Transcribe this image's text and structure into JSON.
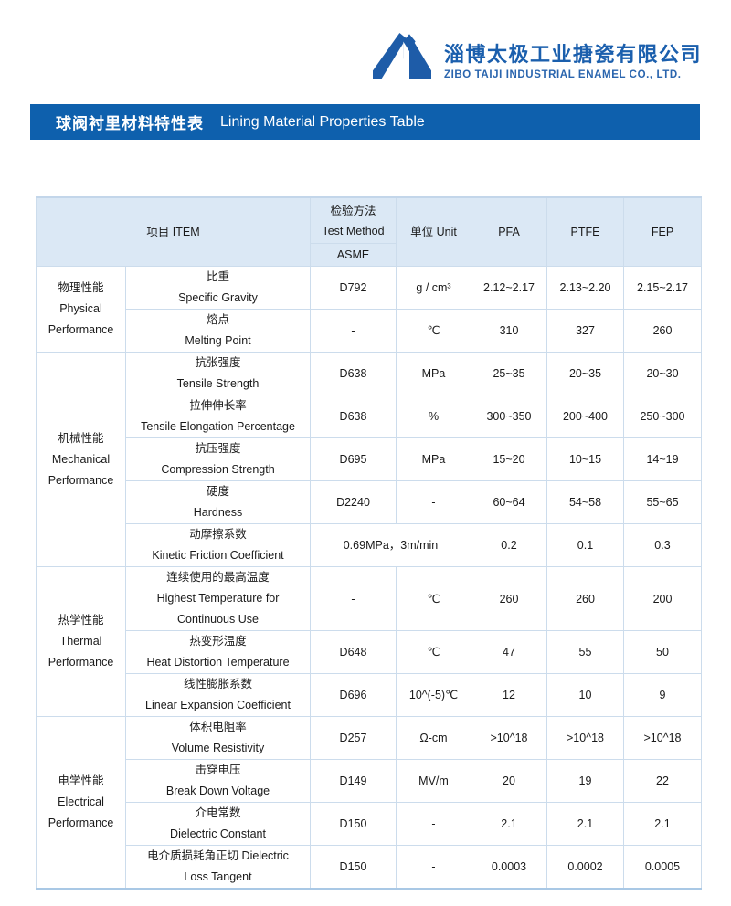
{
  "company": {
    "name_zh": "淄博太极工业搪瓷有限公司",
    "name_en": "ZIBO TAIJI INDUSTRIAL ENAMEL CO., LTD."
  },
  "title": {
    "zh": "球阀衬里材料特性表",
    "en": "Lining Material Properties Table"
  },
  "colors": {
    "brand_blue": "#0e60ad",
    "logo_blue": "#1e5ca8",
    "header_bg": "#dbe8f5",
    "table_border": "#ccdcec",
    "table_bottom_line": "#a9c8e5"
  },
  "table": {
    "header": {
      "item": "项目 ITEM",
      "method_zh": "检验方法",
      "method_en": "Test Method",
      "method_std": "ASME",
      "unit": "单位  Unit",
      "materials": [
        "PFA",
        "PTFE",
        "FEP"
      ]
    },
    "sections": [
      {
        "category_lines": [
          "物理性能",
          "Physical",
          "Performance"
        ],
        "rows": [
          {
            "label_lines": [
              "比重",
              "Specific Gravity"
            ],
            "method": "D792",
            "unit": "g / cm³",
            "values": [
              "2.12~2.17",
              "2.13~2.20",
              "2.15~2.17"
            ]
          },
          {
            "label_lines": [
              "熔点",
              "Melting Point"
            ],
            "method": "-",
            "unit": "℃",
            "values": [
              "310",
              "327",
              "260"
            ]
          }
        ]
      },
      {
        "category_lines": [
          "机械性能",
          "Mechanical",
          "Performance"
        ],
        "rows": [
          {
            "label_lines": [
              "抗张强度",
              "Tensile Strength"
            ],
            "method": "D638",
            "unit": "MPa",
            "values": [
              "25~35",
              "20~35",
              "20~30"
            ]
          },
          {
            "label_lines": [
              "拉伸伸长率",
              "Tensile Elongation Percentage"
            ],
            "method": "D638",
            "unit": "%",
            "values": [
              "300~350",
              "200~400",
              "250~300"
            ]
          },
          {
            "label_lines": [
              "抗压强度",
              "Compression Strength"
            ],
            "method": "D695",
            "unit": "MPa",
            "values": [
              "15~20",
              "10~15",
              "14~19"
            ]
          },
          {
            "label_lines": [
              "硬度",
              "Hardness"
            ],
            "method": "D2240",
            "unit": "-",
            "values": [
              "60~64",
              "54~58",
              "55~65"
            ]
          },
          {
            "label_lines": [
              "动摩擦系数",
              "Kinetic Friction Coefficient"
            ],
            "method_merged": "0.69MPa，3m/min",
            "values": [
              "0.2",
              "0.1",
              "0.3"
            ]
          }
        ]
      },
      {
        "category_lines": [
          "热学性能",
          "Thermal",
          "Performance"
        ],
        "rows": [
          {
            "label_lines": [
              "连续使用的最高温度",
              "Highest Temperature for",
              "Continuous Use"
            ],
            "tall": true,
            "method": "-",
            "unit": "℃",
            "values": [
              "260",
              "260",
              "200"
            ]
          },
          {
            "label_lines": [
              "热变形温度",
              "Heat Distortion Temperature"
            ],
            "method": "D648",
            "unit": "℃",
            "values": [
              "47",
              "55",
              "50"
            ]
          },
          {
            "label_lines": [
              "线性膨胀系数",
              "Linear Expansion Coefficient"
            ],
            "method": "D696",
            "unit": "10^(-5)℃",
            "values": [
              "12",
              "10",
              "9"
            ]
          }
        ]
      },
      {
        "category_lines": [
          "电学性能",
          "Electrical",
          "Performance"
        ],
        "rows": [
          {
            "label_lines": [
              "体积电阻率",
              "Volume Resistivity"
            ],
            "method": "D257",
            "unit": "Ω-cm",
            "values": [
              ">10^18",
              ">10^18",
              ">10^18"
            ]
          },
          {
            "label_lines": [
              "击穿电压",
              "Break Down Voltage"
            ],
            "method": "D149",
            "unit": "MV/m",
            "values": [
              "20",
              "19",
              "22"
            ]
          },
          {
            "label_lines": [
              "介电常数",
              "Dielectric Constant"
            ],
            "method": "D150",
            "unit": "-",
            "values": [
              "2.1",
              "2.1",
              "2.1"
            ]
          },
          {
            "label_lines": [
              "电介质损耗角正切 Dielectric",
              "Loss Tangent"
            ],
            "method": "D150",
            "unit": "-",
            "values": [
              "0.0003",
              "0.0002",
              "0.0005"
            ]
          }
        ]
      }
    ]
  }
}
